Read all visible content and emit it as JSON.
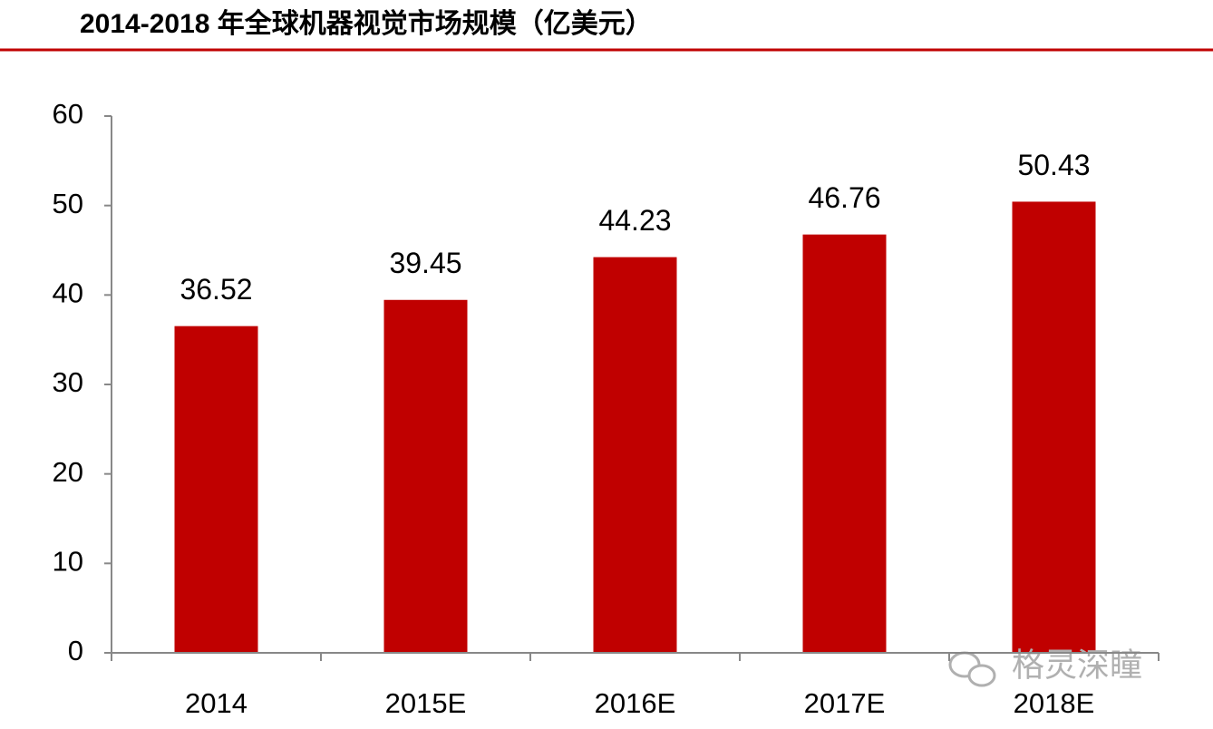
{
  "chart_data": {
    "type": "bar",
    "title": "2014-2018 年全球机器视觉市场规模（亿美元）",
    "categories": [
      "2014",
      "2015E",
      "2016E",
      "2017E",
      "2018E"
    ],
    "values": [
      36.52,
      39.45,
      44.23,
      46.76,
      50.43
    ],
    "color": "#c00000",
    "ylim": [
      0,
      60
    ],
    "yticks": [
      0,
      10,
      20,
      30,
      40,
      50,
      60
    ],
    "data_labels": true,
    "watermark": "格灵深瞳"
  }
}
